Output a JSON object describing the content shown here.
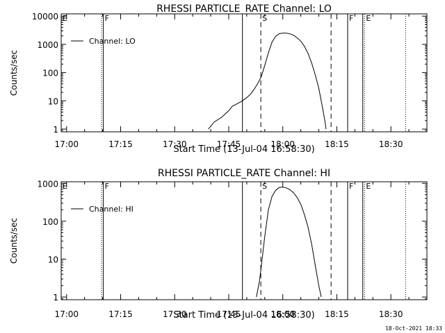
{
  "timestamp": "18-Oct-2021 18:33",
  "chart_data": [
    {
      "type": "line",
      "title": "RHESSI PARTICLE_RATE Channel: LO",
      "xlabel": "Start Time (13-Jul-04 16:58:30)",
      "ylabel": "Counts/sec",
      "legend": "Channel: LO",
      "legend_position": "top-left",
      "y_scale": "log",
      "xlim": [
        "16:58:30",
        "18:40:00"
      ],
      "ylim": [
        0.8,
        12000
      ],
      "x_ticks": [
        "17:00",
        "17:15",
        "17:30",
        "17:45",
        "18:00",
        "18:15",
        "18:30"
      ],
      "y_ticks": [
        "1",
        "10",
        "100",
        "1000",
        "10000"
      ],
      "markers": [
        {
          "time": "16:58:30",
          "style": "solid",
          "label": "E"
        },
        {
          "time": "17:09:42",
          "style": "dotted",
          "label": ""
        },
        {
          "time": "17:10:12",
          "style": "solid",
          "label": "F"
        },
        {
          "time": "17:48:48",
          "style": "solid",
          "label": ""
        },
        {
          "time": "17:53:54",
          "style": "dashed",
          "label": "S"
        },
        {
          "time": "18:13:24",
          "style": "dashed",
          "label": ""
        },
        {
          "time": "18:18:00",
          "style": "solid",
          "label": "F"
        },
        {
          "time": "18:22:12",
          "style": "solid",
          "label": ""
        },
        {
          "time": "18:22:42",
          "style": "dotted",
          "label": "E"
        },
        {
          "time": "18:34:06",
          "style": "dotted",
          "label": ""
        }
      ],
      "series": [
        {
          "name": "Channel: LO",
          "color": "#000000",
          "points": [
            [
              "17:39:20",
              1
            ],
            [
              "17:41:00",
              1.8
            ],
            [
              "17:43:00",
              2.6
            ],
            [
              "17:45:00",
              4.5
            ],
            [
              "17:46:00",
              6.5
            ],
            [
              "17:47:00",
              7.5
            ],
            [
              "17:48:30",
              9.5
            ],
            [
              "17:50:00",
              13
            ],
            [
              "17:51:00",
              17
            ],
            [
              "17:52:00",
              25
            ],
            [
              "17:53:00",
              40
            ],
            [
              "17:54:00",
              70
            ],
            [
              "17:55:00",
              180
            ],
            [
              "17:56:00",
              500
            ],
            [
              "17:57:00",
              1200
            ],
            [
              "17:58:00",
              1900
            ],
            [
              "17:59:00",
              2400
            ],
            [
              "18:00:00",
              2500
            ],
            [
              "18:01:00",
              2500
            ],
            [
              "18:02:00",
              2350
            ],
            [
              "18:03:00",
              2100
            ],
            [
              "18:04:00",
              1700
            ],
            [
              "18:05:00",
              1300
            ],
            [
              "18:06:00",
              850
            ],
            [
              "18:07:00",
              480
            ],
            [
              "18:08:00",
              220
            ],
            [
              "18:09:00",
              85
            ],
            [
              "18:10:00",
              28
            ],
            [
              "18:11:00",
              6
            ],
            [
              "18:11:40",
              2
            ],
            [
              "18:12:00",
              1
            ]
          ]
        }
      ]
    },
    {
      "type": "line",
      "title": "RHESSI PARTICLE_RATE Channel: HI",
      "xlabel": "Start Time (13-Jul-04 16:58:30)",
      "ylabel": "Counts/sec",
      "legend": "Channel: HI",
      "legend_position": "top-left",
      "y_scale": "log",
      "xlim": [
        "16:58:30",
        "18:40:00"
      ],
      "ylim": [
        0.85,
        1100
      ],
      "x_ticks": [
        "17:00",
        "17:15",
        "17:30",
        "17:45",
        "18:00",
        "18:15",
        "18:30"
      ],
      "y_ticks": [
        "1",
        "10",
        "100",
        "1000"
      ],
      "markers": [
        {
          "time": "16:58:30",
          "style": "solid",
          "label": "E"
        },
        {
          "time": "17:09:42",
          "style": "dotted",
          "label": ""
        },
        {
          "time": "17:10:12",
          "style": "solid",
          "label": "F"
        },
        {
          "time": "17:48:48",
          "style": "solid",
          "label": ""
        },
        {
          "time": "17:53:54",
          "style": "dashed",
          "label": "S"
        },
        {
          "time": "18:13:24",
          "style": "dashed",
          "label": ""
        },
        {
          "time": "18:18:00",
          "style": "solid",
          "label": "F"
        },
        {
          "time": "18:22:12",
          "style": "solid",
          "label": ""
        },
        {
          "time": "18:22:42",
          "style": "dotted",
          "label": "E"
        },
        {
          "time": "18:34:06",
          "style": "dotted",
          "label": ""
        }
      ],
      "series": [
        {
          "name": "Channel: HI",
          "color": "#000000",
          "points": [
            [
              "17:52:40",
              1
            ],
            [
              "17:53:30",
              2.5
            ],
            [
              "17:54:00",
              6
            ],
            [
              "17:55:00",
              40
            ],
            [
              "17:56:00",
              200
            ],
            [
              "17:57:00",
              450
            ],
            [
              "17:58:00",
              650
            ],
            [
              "17:59:00",
              780
            ],
            [
              "18:00:00",
              800
            ],
            [
              "18:01:00",
              760
            ],
            [
              "18:02:00",
              680
            ],
            [
              "18:03:00",
              560
            ],
            [
              "18:04:00",
              420
            ],
            [
              "18:05:00",
              280
            ],
            [
              "18:06:00",
              150
            ],
            [
              "18:07:00",
              70
            ],
            [
              "18:08:00",
              25
            ],
            [
              "18:09:00",
              7
            ],
            [
              "18:10:00",
              2
            ],
            [
              "18:10:40",
              1
            ]
          ]
        }
      ]
    }
  ]
}
